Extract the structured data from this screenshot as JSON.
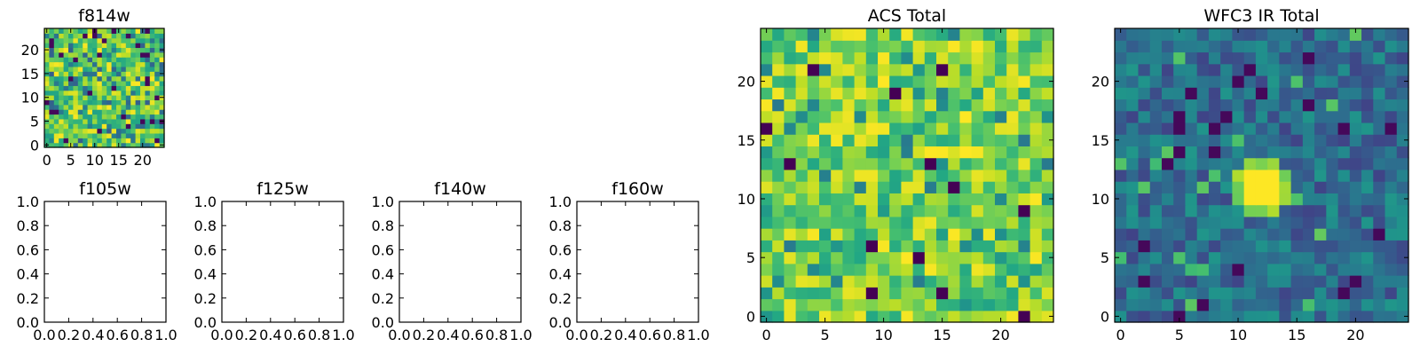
{
  "chart_data": [
    {
      "type": "heatmap",
      "id": "f814w",
      "title": "f814w",
      "xlim": [
        0,
        25
      ],
      "ylim": [
        0,
        25
      ],
      "xticks": [
        0,
        5,
        10,
        15,
        20
      ],
      "yticks": [
        0,
        5,
        10,
        15,
        20
      ],
      "grid_size": [
        25,
        25
      ],
      "colormap": "viridis",
      "texture": "uniform-noise-high"
    },
    {
      "type": "empty",
      "id": "f105w",
      "title": "f105w",
      "xlim": [
        0,
        1
      ],
      "ylim": [
        0,
        1
      ],
      "xticks": [
        "0.0",
        "0.2",
        "0.4",
        "0.6",
        "0.8",
        "1.0"
      ],
      "yticks": [
        "0.0",
        "0.2",
        "0.4",
        "0.6",
        "0.8",
        "1.0"
      ]
    },
    {
      "type": "empty",
      "id": "f125w",
      "title": "f125w",
      "xlim": [
        0,
        1
      ],
      "ylim": [
        0,
        1
      ],
      "xticks": [
        "0.0",
        "0.2",
        "0.4",
        "0.6",
        "0.8",
        "1.0"
      ],
      "yticks": [
        "0.0",
        "0.2",
        "0.4",
        "0.6",
        "0.8",
        "1.0"
      ]
    },
    {
      "type": "empty",
      "id": "f140w",
      "title": "f140w",
      "xlim": [
        0,
        1
      ],
      "ylim": [
        0,
        1
      ],
      "xticks": [
        "0.0",
        "0.2",
        "0.4",
        "0.6",
        "0.8",
        "1.0"
      ],
      "yticks": [
        "0.0",
        "0.2",
        "0.4",
        "0.6",
        "0.8",
        "1.0"
      ]
    },
    {
      "type": "empty",
      "id": "f160w",
      "title": "f160w",
      "xlim": [
        0,
        1
      ],
      "ylim": [
        0,
        1
      ],
      "xticks": [
        "0.0",
        "0.2",
        "0.4",
        "0.6",
        "0.8",
        "1.0"
      ],
      "yticks": [
        "0.0",
        "0.2",
        "0.4",
        "0.6",
        "0.8",
        "1.0"
      ]
    },
    {
      "type": "heatmap",
      "id": "acs-total",
      "title": "ACS Total",
      "xlim": [
        0,
        25
      ],
      "ylim": [
        0,
        25
      ],
      "xticks": [
        0,
        5,
        10,
        15,
        20
      ],
      "yticks": [
        0,
        5,
        10,
        15,
        20
      ],
      "grid_size": [
        25,
        25
      ],
      "colormap": "viridis",
      "texture": "noise-high"
    },
    {
      "type": "heatmap",
      "id": "wfc3-ir-total",
      "title": "WFC3 IR Total",
      "xlim": [
        0,
        25
      ],
      "ylim": [
        0,
        25
      ],
      "xticks": [
        0,
        5,
        10,
        15,
        20
      ],
      "yticks": [
        0,
        5,
        10,
        15,
        20
      ],
      "grid_size": [
        25,
        25
      ],
      "colormap": "viridis",
      "texture": "noise-low-with-central-source",
      "source_center": [
        12.5,
        11.5
      ]
    }
  ]
}
